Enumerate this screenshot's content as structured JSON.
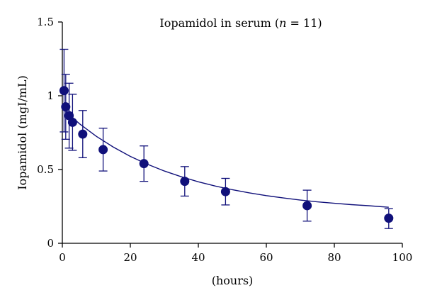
{
  "chart_data": {
    "type": "scatter",
    "title_prefix": "Iopamidol in serum (",
    "title_var": "n",
    "title_suffix": " = 11)",
    "xlabel": "(hours)",
    "ylabel": "Iopamidol (mgI/mL)",
    "xlim": [
      0,
      100
    ],
    "ylim": [
      0,
      1.5
    ],
    "x_ticks": [
      0,
      20,
      40,
      60,
      80,
      100
    ],
    "x_tick_labels": [
      "0",
      "20",
      "40",
      "60",
      "80",
      "100"
    ],
    "y_ticks": [
      0,
      0.5,
      1,
      1.5
    ],
    "y_tick_labels": [
      "0",
      "0.5",
      "1",
      "1.5"
    ],
    "grid": false,
    "legend": "none",
    "series": [
      {
        "points": [
          {
            "x": 0.5,
            "y": 1.035,
            "err_high": 1.315,
            "err_low": 0.755
          },
          {
            "x": 1,
            "y": 0.925,
            "err_high": 1.145,
            "err_low": 0.705
          },
          {
            "x": 2,
            "y": 0.865,
            "err_high": 1.085,
            "err_low": 0.645
          },
          {
            "x": 3,
            "y": 0.82,
            "err_high": 1.01,
            "err_low": 0.63
          },
          {
            "x": 6,
            "y": 0.74,
            "err_high": 0.9,
            "err_low": 0.58
          },
          {
            "x": 12,
            "y": 0.635,
            "err_high": 0.78,
            "err_low": 0.49
          },
          {
            "x": 24,
            "y": 0.54,
            "err_high": 0.66,
            "err_low": 0.42
          },
          {
            "x": 36,
            "y": 0.42,
            "err_high": 0.52,
            "err_low": 0.32
          },
          {
            "x": 48,
            "y": 0.35,
            "err_high": 0.44,
            "err_low": 0.26
          },
          {
            "x": 72,
            "y": 0.255,
            "err_high": 0.36,
            "err_low": 0.15
          },
          {
            "x": 96,
            "y": 0.17,
            "err_high": 0.235,
            "err_low": 0.1
          }
        ],
        "fit_curve": [
          {
            "x": 0,
            "y": 0.92
          },
          {
            "x": 2,
            "y": 0.873
          },
          {
            "x": 5,
            "y": 0.811
          },
          {
            "x": 10,
            "y": 0.725
          },
          {
            "x": 15,
            "y": 0.652
          },
          {
            "x": 20,
            "y": 0.589
          },
          {
            "x": 25,
            "y": 0.536
          },
          {
            "x": 30,
            "y": 0.49
          },
          {
            "x": 35,
            "y": 0.451
          },
          {
            "x": 40,
            "y": 0.417
          },
          {
            "x": 45,
            "y": 0.388
          },
          {
            "x": 50,
            "y": 0.363
          },
          {
            "x": 55,
            "y": 0.342
          },
          {
            "x": 60,
            "y": 0.323
          },
          {
            "x": 65,
            "y": 0.307
          },
          {
            "x": 70,
            "y": 0.293
          },
          {
            "x": 75,
            "y": 0.281
          },
          {
            "x": 80,
            "y": 0.271
          },
          {
            "x": 85,
            "y": 0.262
          },
          {
            "x": 90,
            "y": 0.255
          },
          {
            "x": 96,
            "y": 0.244
          }
        ]
      }
    ],
    "colors": {
      "marker": "#10107a",
      "line": "#10107a",
      "axis": "#000000"
    }
  }
}
